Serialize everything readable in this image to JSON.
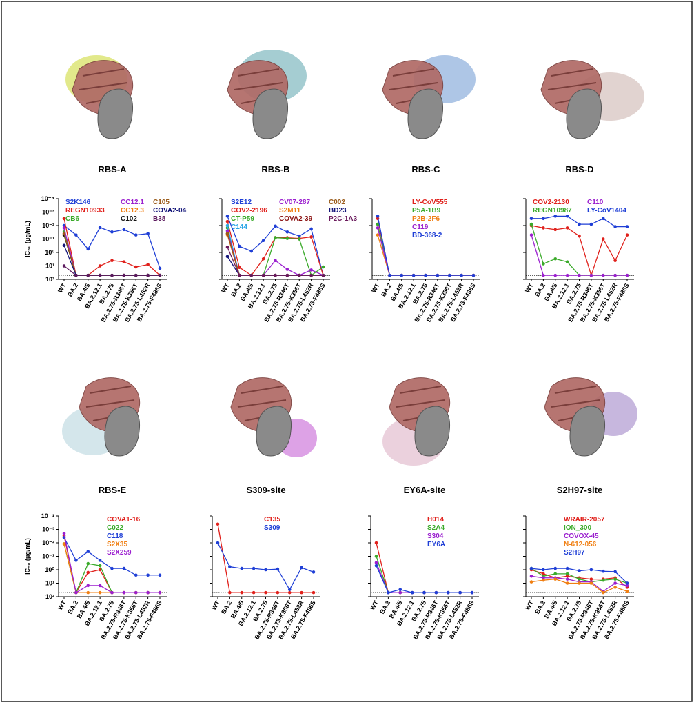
{
  "chart_data": [
    {
      "type": "line",
      "title": "RBS-A",
      "y_label": "IC₅₀ (μg/mL)",
      "log_scale": true,
      "ylim": [
        100,
        0.0001
      ],
      "yticks": [
        {
          "value": 0.0001,
          "label": "10⁻⁴"
        },
        {
          "value": 0.001,
          "label": "10⁻³"
        },
        {
          "value": 0.01,
          "label": "10⁻²"
        },
        {
          "value": 0.1,
          "label": "10⁻¹"
        },
        {
          "value": 1,
          "label": "10⁰"
        },
        {
          "value": 10,
          "label": "10¹"
        },
        {
          "value": 100,
          "label": "10²"
        }
      ],
      "detection_limit": 50,
      "categories": [
        "WT",
        "BA.2",
        "BA.4/5",
        "BA.2.12.1",
        "BA.2.75",
        "BA.2.75-R346T",
        "BA.2.75-K356T",
        "BA.2.75-L452R",
        "BA.2.75-F486S"
      ],
      "series": [
        {
          "name": "S2K146",
          "color": "#1f3fd6",
          "values": [
            0.01,
            0.05,
            0.55,
            0.014,
            0.03,
            0.02,
            0.05,
            0.04,
            15
          ]
        },
        {
          "name": "REGN10933",
          "color": "#e0201b",
          "values": [
            0.003,
            50,
            50,
            10,
            4,
            5,
            12,
            8,
            50
          ]
        },
        {
          "name": "CB6",
          "color": "#3aaa2a",
          "values": [
            0.03,
            50,
            50,
            50,
            50,
            50,
            50,
            50,
            50
          ]
        },
        {
          "name": "CC12.1",
          "color": "#9b1fcf",
          "values": [
            0.015,
            50,
            50,
            50,
            50,
            50,
            50,
            50,
            50
          ]
        },
        {
          "name": "CC12.3",
          "color": "#f07f12",
          "values": [
            0.05,
            50,
            50,
            50,
            50,
            50,
            50,
            50,
            50
          ]
        },
        {
          "name": "C102",
          "color": "#111111",
          "values": [
            0.05,
            50,
            50,
            50,
            50,
            50,
            50,
            50,
            50
          ]
        },
        {
          "name": "C105",
          "color": "#9a5b1a",
          "values": [
            0.04,
            50,
            50,
            50,
            50,
            50,
            50,
            50,
            50
          ]
        },
        {
          "name": "COVA2-04",
          "color": "#14167a",
          "values": [
            0.3,
            50,
            50,
            50,
            50,
            50,
            50,
            50,
            50
          ]
        },
        {
          "name": "B38",
          "color": "#5c1a5e",
          "values": [
            10,
            50,
            50,
            50,
            50,
            50,
            50,
            50,
            50
          ]
        }
      ]
    },
    {
      "type": "line",
      "title": "RBS-B",
      "log_scale": true,
      "ylim": [
        100,
        0.0001
      ],
      "yticks": [
        0.0001,
        0.001,
        0.01,
        0.1,
        1,
        10,
        100
      ],
      "detection_limit": 50,
      "categories": [
        "WT",
        "BA.2",
        "BA.4/5",
        "BA.2.12.1",
        "BA.2.75",
        "BA.2.75-R346T",
        "BA.2.75-K356T",
        "BA.2.75-L452R",
        "BA.2.75-F486S"
      ],
      "series": [
        {
          "name": "S2E12",
          "color": "#1f3fd6",
          "values": [
            0.002,
            0.35,
            0.8,
            0.13,
            0.011,
            0.03,
            0.06,
            0.018,
            50
          ]
        },
        {
          "name": "COV2-2196",
          "color": "#e0201b",
          "values": [
            0.005,
            13,
            50,
            3,
            0.08,
            0.08,
            0.09,
            0.07,
            50
          ]
        },
        {
          "name": "CT-P59",
          "color": "#3aaa2a",
          "values": [
            0.015,
            50,
            50,
            50,
            0.08,
            0.09,
            0.1,
            50,
            12
          ]
        },
        {
          "name": "C144",
          "color": "#2aa6e6",
          "values": [
            0.01,
            50,
            50,
            50,
            50,
            50,
            50,
            50,
            50
          ]
        },
        {
          "name": "CV07-287",
          "color": "#9b1fcf",
          "values": [
            0.025,
            50,
            50,
            50,
            4,
            18,
            50,
            20,
            50
          ]
        },
        {
          "name": "S2M11",
          "color": "#f07f12",
          "values": [
            0.05,
            50,
            50,
            50,
            50,
            50,
            50,
            50,
            50
          ]
        },
        {
          "name": "COVA2-39",
          "color": "#8a1010",
          "values": [
            0.04,
            50,
            50,
            50,
            50,
            50,
            50,
            50,
            50
          ]
        },
        {
          "name": "C002",
          "color": "#9a5b1a",
          "values": [
            0.04,
            50,
            50,
            50,
            50,
            50,
            50,
            50,
            50
          ]
        },
        {
          "name": "BD23",
          "color": "#14167a",
          "values": [
            2,
            50,
            50,
            50,
            50,
            50,
            50,
            50,
            50
          ]
        },
        {
          "name": "P2C-1A3",
          "color": "#6a1a5c",
          "values": [
            0.4,
            50,
            50,
            50,
            50,
            50,
            50,
            50,
            50
          ]
        }
      ]
    },
    {
      "type": "line",
      "title": "RBS-C",
      "log_scale": true,
      "ylim": [
        100,
        0.0001
      ],
      "yticks": [
        0.0001,
        0.001,
        0.01,
        0.1,
        1,
        10,
        100
      ],
      "detection_limit": 50,
      "categories": [
        "WT",
        "BA.2",
        "BA.4/5",
        "BA.2.12.1",
        "BA.2.75",
        "BA.2.75-R346T",
        "BA.2.75-K356T",
        "BA.2.75-L452R",
        "BA.2.75-F486S"
      ],
      "series": [
        {
          "name": "LY-CoV555",
          "color": "#e0201b",
          "values": [
            0.003,
            50,
            50,
            50,
            50,
            50,
            50,
            50,
            50
          ]
        },
        {
          "name": "P5A-1B9",
          "color": "#3aaa2a",
          "values": [
            0.008,
            50,
            50,
            50,
            50,
            50,
            50,
            50,
            50
          ]
        },
        {
          "name": "P2B-2F6",
          "color": "#f07f12",
          "values": [
            0.05,
            50,
            50,
            50,
            50,
            50,
            50,
            50,
            50
          ]
        },
        {
          "name": "C119",
          "color": "#9b1fcf",
          "values": [
            0.015,
            50,
            50,
            50,
            50,
            50,
            50,
            50,
            50
          ]
        },
        {
          "name": "BD-368-2",
          "color": "#1f3fd6",
          "values": [
            0.002,
            50,
            50,
            50,
            50,
            50,
            50,
            50,
            50
          ]
        }
      ]
    },
    {
      "type": "line",
      "title": "RBS-D",
      "log_scale": true,
      "ylim": [
        100,
        0.0001
      ],
      "yticks": [
        0.0001,
        0.001,
        0.01,
        0.1,
        1,
        10,
        100
      ],
      "detection_limit": 50,
      "categories": [
        "WT",
        "BA.2",
        "BA.4/5",
        "BA.2.12.1",
        "BA.2.75",
        "BA.2.75-R346T",
        "BA.2.75-K356T",
        "BA.2.75-L452R",
        "BA.2.75-F486S"
      ],
      "series": [
        {
          "name": "COV2-2130",
          "color": "#e0201b",
          "values": [
            0.01,
            0.015,
            0.02,
            0.015,
            0.06,
            50,
            0.1,
            4,
            0.05
          ]
        },
        {
          "name": "REGN10987",
          "color": "#3aaa2a",
          "values": [
            0.008,
            7,
            3,
            5,
            50,
            50,
            50,
            50,
            50
          ]
        },
        {
          "name": "C110",
          "color": "#9b1fcf",
          "values": [
            0.05,
            50,
            50,
            50,
            50,
            50,
            50,
            50,
            50
          ]
        },
        {
          "name": "LY-CoV1404",
          "color": "#1f3fd6",
          "values": [
            0.003,
            0.003,
            0.002,
            0.002,
            0.008,
            0.008,
            0.003,
            0.012,
            0.012
          ]
        }
      ]
    },
    {
      "type": "line",
      "title": "RBS-E",
      "y_label": "IC₅₀ (μg/mL)",
      "log_scale": true,
      "ylim": [
        100,
        0.0001
      ],
      "yticks": [
        {
          "value": 0.0001,
          "label": "10⁻⁴"
        },
        {
          "value": 0.001,
          "label": "10⁻³"
        },
        {
          "value": 0.01,
          "label": "10⁻²"
        },
        {
          "value": 0.1,
          "label": "10⁻¹"
        },
        {
          "value": 1,
          "label": "10⁰"
        },
        {
          "value": 10,
          "label": "10¹"
        },
        {
          "value": 100,
          "label": "10²"
        }
      ],
      "detection_limit": 50,
      "categories": [
        "WT",
        "BA.2",
        "BA.4/5",
        "BA.2.12.1",
        "BA.2.75",
        "BA.2.75-R346T",
        "BA.2.75-K356T",
        "BA.2.75-L452R",
        "BA.2.75-F486S"
      ],
      "series": [
        {
          "name": "COVA1-16",
          "color": "#e0201b",
          "values": [
            0.003,
            50,
            1.6,
            1,
            50,
            50,
            50,
            50,
            50
          ]
        },
        {
          "name": "C022",
          "color": "#3aaa2a",
          "values": [
            0.012,
            50,
            0.35,
            0.5,
            50,
            50,
            50,
            50,
            50
          ]
        },
        {
          "name": "C118",
          "color": "#1f3fd6",
          "values": [
            0.004,
            0.2,
            0.045,
            0.2,
            0.8,
            0.8,
            2.5,
            2.5,
            2.5
          ]
        },
        {
          "name": "S2X35",
          "color": "#f07f12",
          "values": [
            0.012,
            50,
            50,
            50,
            50,
            50,
            50,
            50,
            50
          ]
        },
        {
          "name": "S2X259",
          "color": "#9b1fcf",
          "values": [
            0.002,
            50,
            15,
            15,
            50,
            50,
            50,
            50,
            50
          ]
        }
      ]
    },
    {
      "type": "line",
      "title": "S309-site",
      "log_scale": true,
      "ylim": [
        100,
        0.0001
      ],
      "yticks": [
        0.0001,
        0.001,
        0.01,
        0.1,
        1,
        10,
        100
      ],
      "detection_limit": 50,
      "categories": [
        "WT",
        "BA.2",
        "BA.4/5",
        "BA.2.12.1",
        "BA.2.75",
        "BA.2.75-R346T",
        "BA.2.75-K356T",
        "BA.2.75-L452R",
        "BA.2.75-F486S"
      ],
      "series": [
        {
          "name": "C135",
          "color": "#e0201b",
          "values": [
            0.0004,
            50,
            50,
            50,
            50,
            50,
            50,
            50,
            50
          ]
        },
        {
          "name": "S309",
          "color": "#1f3fd6",
          "values": [
            0.01,
            0.6,
            0.8,
            0.8,
            1,
            0.9,
            30,
            0.7,
            1.5
          ]
        }
      ]
    },
    {
      "type": "line",
      "title": "EY6A-site",
      "log_scale": true,
      "ylim": [
        100,
        0.0001
      ],
      "yticks": [
        0.0001,
        0.001,
        0.01,
        0.1,
        1,
        10,
        100
      ],
      "detection_limit": 50,
      "categories": [
        "WT",
        "BA.2",
        "BA.4/5",
        "BA.2.12.1",
        "BA.2.75",
        "BA.2.75-R346T",
        "BA.2.75-K356T",
        "BA.2.75-L452R",
        "BA.2.75-F486S"
      ],
      "series": [
        {
          "name": "H014",
          "color": "#e0201b",
          "values": [
            0.01,
            50,
            50,
            50,
            50,
            50,
            50,
            50,
            50
          ]
        },
        {
          "name": "S2A4",
          "color": "#3aaa2a",
          "values": [
            0.1,
            50,
            50,
            50,
            50,
            50,
            50,
            50,
            50
          ]
        },
        {
          "name": "S304",
          "color": "#9b1fcf",
          "values": [
            0.3,
            50,
            50,
            50,
            50,
            50,
            50,
            50,
            50
          ]
        },
        {
          "name": "EY6A",
          "color": "#1f3fd6",
          "values": [
            0.5,
            50,
            30,
            50,
            50,
            50,
            50,
            50,
            50
          ]
        }
      ]
    },
    {
      "type": "line",
      "title": "S2H97-site",
      "log_scale": true,
      "ylim": [
        100,
        0.0001
      ],
      "yticks": [
        0.0001,
        0.001,
        0.01,
        0.1,
        1,
        10,
        100
      ],
      "detection_limit": 50,
      "categories": [
        "WT",
        "BA.2",
        "BA.4/5",
        "BA.2.12.1",
        "BA.2.75",
        "BA.2.75-R346T",
        "BA.2.75-K356T",
        "BA.2.75-L452R",
        "BA.2.75-F486S"
      ],
      "series": [
        {
          "name": "WRAIR-2057",
          "color": "#e0201b",
          "values": [
            1,
            2,
            4,
            3,
            4,
            5,
            5,
            4,
            20
          ]
        },
        {
          "name": "ION_300",
          "color": "#3aaa2a",
          "values": [
            0.8,
            3,
            2,
            2,
            5,
            8,
            6,
            5,
            10
          ]
        },
        {
          "name": "COVOX-45",
          "color": "#9b1fcf",
          "values": [
            3,
            4,
            4,
            5,
            8,
            8,
            40,
            10,
            15
          ]
        },
        {
          "name": "N-612-056",
          "color": "#f07f12",
          "values": [
            8,
            6,
            5,
            10,
            10,
            10,
            50,
            20,
            40
          ]
        },
        {
          "name": "S2H97",
          "color": "#1f3fd6",
          "values": [
            0.8,
            1,
            0.8,
            0.8,
            1.2,
            1,
            1.3,
            1.4,
            10
          ]
        }
      ]
    }
  ]
}
